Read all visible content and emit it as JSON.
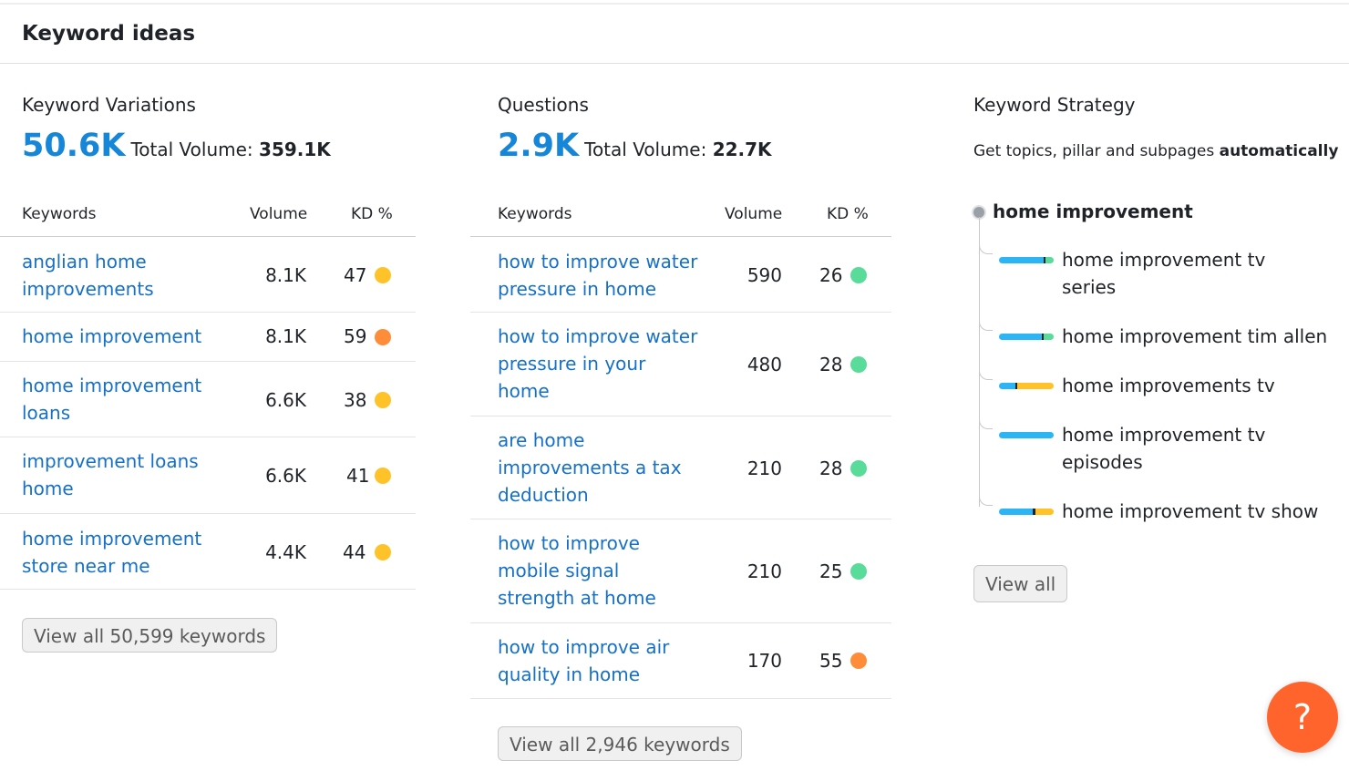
{
  "header": {
    "title": "Keyword ideas"
  },
  "variations": {
    "title": "Keyword Variations",
    "count": "50.6K",
    "total_label": "Total Volume:",
    "total_value": "359.1K",
    "columns": {
      "keywords": "Keywords",
      "volume": "Volume",
      "kd": "KD %"
    },
    "rows": [
      {
        "keyword": "anglian home improvements",
        "volume": "8.1K",
        "kd": "47",
        "kd_color": "#ffc329"
      },
      {
        "keyword": "home improvement",
        "volume": "8.1K",
        "kd": "59",
        "kd_color": "#ff8c38"
      },
      {
        "keyword": "home improvement loans",
        "volume": "6.6K",
        "kd": "38",
        "kd_color": "#ffc329"
      },
      {
        "keyword": "improvement loans home",
        "volume": "6.6K",
        "kd": "41",
        "kd_color": "#ffc329"
      },
      {
        "keyword": "home improvement store near me",
        "volume": "4.4K",
        "kd": "44",
        "kd_color": "#ffc329"
      }
    ],
    "view_all": "View all 50,599 keywords"
  },
  "questions": {
    "title": "Questions",
    "count": "2.9K",
    "total_label": "Total Volume:",
    "total_value": "22.7K",
    "columns": {
      "keywords": "Keywords",
      "volume": "Volume",
      "kd": "KD %"
    },
    "rows": [
      {
        "keyword": "how to improve water pressure in home",
        "volume": "590",
        "kd": "26",
        "kd_color": "#59dc9a"
      },
      {
        "keyword": "how to improve water pressure in your home",
        "volume": "480",
        "kd": "28",
        "kd_color": "#59dc9a"
      },
      {
        "keyword": "are home improvements a tax deduction",
        "volume": "210",
        "kd": "28",
        "kd_color": "#59dc9a"
      },
      {
        "keyword": "how to improve mobile signal strength at home",
        "volume": "210",
        "kd": "25",
        "kd_color": "#59dc9a"
      },
      {
        "keyword": "how to improve air quality in home",
        "volume": "170",
        "kd": "55",
        "kd_color": "#ff8c38"
      }
    ],
    "view_all": "View all 2,946 keywords"
  },
  "strategy": {
    "title": "Keyword Strategy",
    "subtitle_prefix": "Get topics, pillar and subpages ",
    "subtitle_bold": "automatically",
    "root": "home improvement",
    "children": [
      {
        "label": "home improvement tv series",
        "segments": [
          {
            "color": "#2bb5f5",
            "share": 0.82
          },
          {
            "color": "#1f2328",
            "share": 0.03
          },
          {
            "color": "#59dc9a",
            "share": 0.15
          }
        ]
      },
      {
        "label": "home improvement tim allen",
        "segments": [
          {
            "color": "#2bb5f5",
            "share": 0.78
          },
          {
            "color": "#1f2328",
            "share": 0.04
          },
          {
            "color": "#59dc9a",
            "share": 0.18
          }
        ]
      },
      {
        "label": "home improvements tv",
        "segments": [
          {
            "color": "#2bb5f5",
            "share": 0.3
          },
          {
            "color": "#1f2328",
            "share": 0.04
          },
          {
            "color": "#ffc329",
            "share": 0.66
          }
        ]
      },
      {
        "label": "home improvement tv episodes",
        "segments": [
          {
            "color": "#2bb5f5",
            "share": 1.0
          }
        ]
      },
      {
        "label": "home improvement tv show",
        "segments": [
          {
            "color": "#2bb5f5",
            "share": 0.62
          },
          {
            "color": "#1f2328",
            "share": 0.04
          },
          {
            "color": "#ffc329",
            "share": 0.34
          }
        ]
      }
    ],
    "view_all": "View all"
  },
  "help": {
    "icon": "question-mark-icon",
    "glyph": "?"
  }
}
